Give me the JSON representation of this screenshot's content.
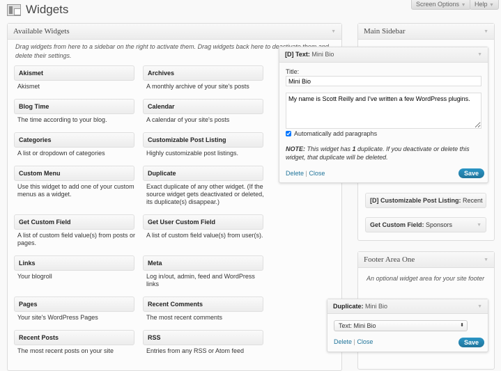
{
  "header": {
    "title": "Widgets",
    "screen_options": "Screen Options",
    "help": "Help"
  },
  "available": {
    "title": "Available Widgets",
    "intro": "Drag widgets from here to a sidebar on the right to activate them. Drag widgets back here to deactivate them and delete their settings.",
    "widgets": [
      {
        "name": "Akismet",
        "desc": "Akismet"
      },
      {
        "name": "Archives",
        "desc": "A monthly archive of your site's posts"
      },
      {
        "name": "Blog Time",
        "desc": "The time according to your blog."
      },
      {
        "name": "Calendar",
        "desc": "A calendar of your site's posts"
      },
      {
        "name": "Categories",
        "desc": "A list or dropdown of categories"
      },
      {
        "name": "Customizable Post Listing",
        "desc": "Highly customizable post listings."
      },
      {
        "name": "Custom Menu",
        "desc": "Use this widget to add one of your custom menus as a widget."
      },
      {
        "name": "Duplicate",
        "desc": "Exact duplicate of any other widget. (If the source widget gets deactivated or deleted, its duplicate(s) disappear.)"
      },
      {
        "name": "Get Custom Field",
        "desc": "A list of custom field value(s) from posts or pages."
      },
      {
        "name": "Get User Custom Field",
        "desc": "A list of custom field value(s) from user(s)."
      },
      {
        "name": "Links",
        "desc": "Your blogroll"
      },
      {
        "name": "Meta",
        "desc": "Log in/out, admin, feed and WordPress links"
      },
      {
        "name": "Pages",
        "desc": "Your site's WordPress Pages"
      },
      {
        "name": "Recent Comments",
        "desc": "The most recent comments"
      },
      {
        "name": "Recent Posts",
        "desc": "The most recent posts on your site"
      },
      {
        "name": "RSS",
        "desc": "Entries from any RSS or Atom feed"
      }
    ]
  },
  "main_sidebar": {
    "title": "Main Sidebar",
    "text_widget": {
      "prefix": "[D] Text:",
      "name": "Mini Bio",
      "title_label": "Title:",
      "title_value": "Mini Bio",
      "content": "My name is Scott Reilly and I've written a few WordPress plugins.",
      "auto_p_label": "Automatically add paragraphs",
      "auto_p_checked": true,
      "note_bold": "NOTE:",
      "note_a": " This widget has ",
      "note_count": "1",
      "note_b": " duplicate. If you deactivate or delete this widget, that duplicate will be deleted.",
      "delete": "Delete",
      "sep": "|",
      "close": "Close",
      "save": "Save"
    },
    "widgets": [
      {
        "prefix": "[D] Customizable Post Listing:",
        "name": "Recent"
      },
      {
        "prefix": "Get Custom Field:",
        "name": "Sponsors"
      }
    ]
  },
  "footer_one": {
    "title": "Footer Area One",
    "desc": "An optional widget area for your site footer",
    "dup_widget": {
      "prefix": "Duplicate:",
      "name": "Mini Bio",
      "select_value": "Text: Mini Bio",
      "delete": "Delete",
      "sep": "|",
      "close": "Close",
      "save": "Save"
    }
  }
}
